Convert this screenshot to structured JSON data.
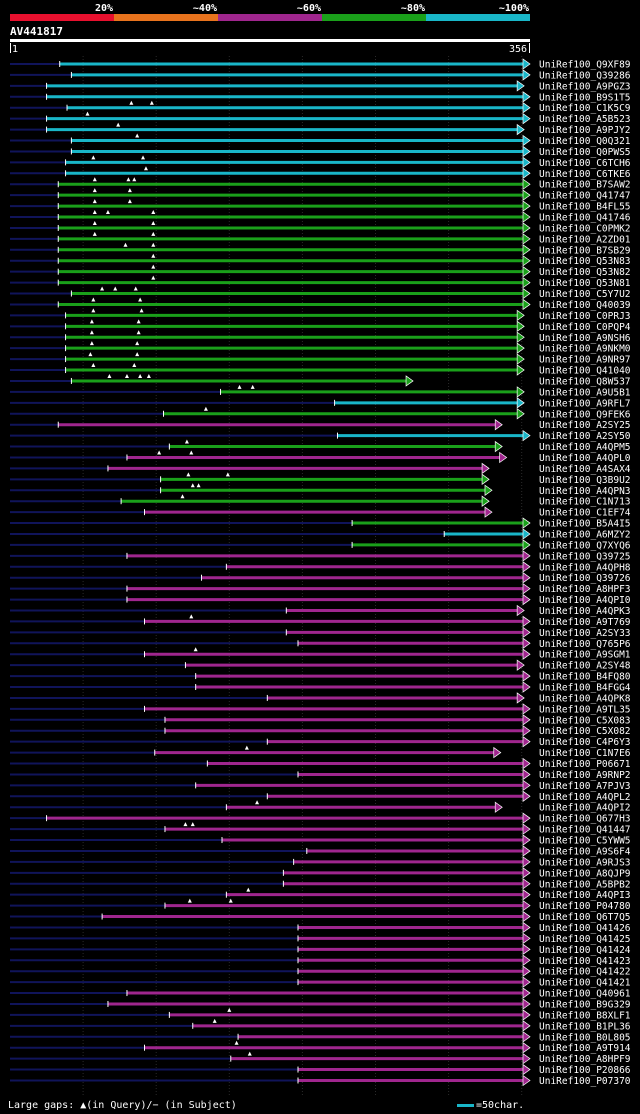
{
  "chart_data": {
    "type": "alignment-overview",
    "title": "AV441817",
    "query_length": 356,
    "axis": {
      "start_label": "1",
      "end_label": "356",
      "xlim": [
        1,
        356
      ]
    },
    "legend": {
      "identity": [
        {
          "label": "20%",
          "color": "#e8102e"
        },
        {
          "label": "~40%",
          "color": "#e8731d"
        },
        {
          "label": "~60%",
          "color": "#a0268e"
        },
        {
          "label": "~80%",
          "color": "#1aa01a"
        },
        {
          "label": "~100%",
          "color": "#19b6c8"
        }
      ],
      "gap_note": "Large gaps: ▲(in Query)/− (in Subject)",
      "scale_note": "=50char.",
      "scale_chars": 50
    },
    "colors": {
      "pink": "#a0268e",
      "green": "#1aa01a",
      "cyan": "#19b6c8",
      "dark": "#10145a",
      "white": "#ffffff"
    },
    "hits": [
      {
        "id": "UniRef100_Q9XF89",
        "start": 35,
        "end": 356,
        "color": "cyan"
      },
      {
        "id": "UniRef100_Q39286",
        "start": 43,
        "end": 356,
        "color": "cyan"
      },
      {
        "id": "UniRef100_A9PGZ3",
        "start": 26,
        "end": 352,
        "color": "cyan"
      },
      {
        "id": "UniRef100_B9S1T5",
        "start": 26,
        "end": 356,
        "color": "cyan"
      },
      {
        "id": "UniRef100_C1K5C9",
        "start": 40,
        "end": 356,
        "color": "cyan",
        "tri": [
          84,
          98
        ]
      },
      {
        "id": "UniRef100_A5B523",
        "start": 26,
        "end": 356,
        "color": "cyan",
        "tri": [
          54
        ]
      },
      {
        "id": "UniRef100_A9PJY2",
        "start": 26,
        "end": 352,
        "color": "cyan",
        "tri": [
          75
        ]
      },
      {
        "id": "UniRef100_Q0Q321",
        "start": 43,
        "end": 356,
        "color": "cyan",
        "tri": [
          88
        ]
      },
      {
        "id": "UniRef100_Q0PWS5",
        "start": 43,
        "end": 356,
        "color": "cyan"
      },
      {
        "id": "UniRef100_C6TCH6",
        "start": 39,
        "end": 356,
        "color": "cyan",
        "tri": [
          58,
          92
        ]
      },
      {
        "id": "UniRef100_C6TKE6",
        "start": 39,
        "end": 356,
        "color": "cyan",
        "tri": [
          94
        ]
      },
      {
        "id": "UniRef100_B7SAW2",
        "start": 34,
        "end": 356,
        "color": "green",
        "tri": [
          59,
          82,
          86
        ]
      },
      {
        "id": "UniRef100_Q41747",
        "start": 34,
        "end": 356,
        "color": "green",
        "tri": [
          59,
          83
        ]
      },
      {
        "id": "UniRef100_B4FL55",
        "start": 34,
        "end": 356,
        "color": "green",
        "tri": [
          59,
          83
        ]
      },
      {
        "id": "UniRef100_Q41746",
        "start": 34,
        "end": 356,
        "color": "green",
        "tri": [
          59,
          68,
          99
        ]
      },
      {
        "id": "UniRef100_C0PMK2",
        "start": 34,
        "end": 356,
        "color": "green",
        "tri": [
          59,
          99
        ]
      },
      {
        "id": "UniRef100_A2ZD01",
        "start": 34,
        "end": 356,
        "color": "green",
        "tri": [
          59,
          99
        ]
      },
      {
        "id": "UniRef100_B7SB29",
        "start": 34,
        "end": 356,
        "color": "green",
        "tri": [
          80,
          99
        ]
      },
      {
        "id": "UniRef100_Q53N83",
        "start": 34,
        "end": 356,
        "color": "green",
        "tri": [
          99
        ]
      },
      {
        "id": "UniRef100_Q53N82",
        "start": 34,
        "end": 356,
        "color": "green",
        "tri": [
          99
        ]
      },
      {
        "id": "UniRef100_Q53N81",
        "start": 34,
        "end": 356,
        "color": "green",
        "tri": [
          99
        ]
      },
      {
        "id": "UniRef100_C5Y7U2",
        "start": 43,
        "end": 356,
        "color": "green",
        "tri": [
          64,
          73,
          87
        ]
      },
      {
        "id": "UniRef100_Q40039",
        "start": 34,
        "end": 356,
        "color": "green",
        "tri": [
          58,
          90
        ]
      },
      {
        "id": "UniRef100_C0PRJ3",
        "start": 39,
        "end": 352,
        "color": "green",
        "tri": [
          58,
          91
        ]
      },
      {
        "id": "UniRef100_C0PQP4",
        "start": 39,
        "end": 352,
        "color": "green",
        "tri": [
          57,
          89
        ]
      },
      {
        "id": "UniRef100_A9NSH6",
        "start": 39,
        "end": 352,
        "color": "green",
        "tri": [
          57,
          89
        ]
      },
      {
        "id": "UniRef100_A9NKM0",
        "start": 39,
        "end": 352,
        "color": "green",
        "tri": [
          57,
          88
        ]
      },
      {
        "id": "UniRef100_A9NR97",
        "start": 39,
        "end": 352,
        "color": "green",
        "tri": [
          56,
          88
        ]
      },
      {
        "id": "UniRef100_Q41040",
        "start": 39,
        "end": 352,
        "color": "green",
        "tri": [
          58,
          86
        ]
      },
      {
        "id": "UniRef100_Q8W537",
        "start": 43,
        "end": 276,
        "color": "green",
        "tri": [
          69,
          81,
          90,
          96
        ]
      },
      {
        "id": "UniRef100_A9U5B1",
        "start": 145,
        "end": 352,
        "color": "green",
        "tri": [
          158,
          167
        ]
      },
      {
        "id": "UniRef100_A9RFL7",
        "start": 223,
        "end": 352,
        "color": "cyan"
      },
      {
        "id": "UniRef100_Q9FEK6",
        "start": 106,
        "end": 352,
        "color": "green",
        "tri": [
          135
        ]
      },
      {
        "id": "UniRef100_A2SY25",
        "start": 34,
        "end": 337,
        "color": "pink"
      },
      {
        "id": "UniRef100_A2SY50",
        "start": 225,
        "end": 356,
        "color": "cyan"
      },
      {
        "id": "UniRef100_A4QPM5",
        "start": 110,
        "end": 337,
        "color": "green",
        "tri": [
          122
        ]
      },
      {
        "id": "UniRef100_A4QPL0",
        "start": 81,
        "end": 340,
        "color": "pink",
        "tri": [
          103,
          125
        ]
      },
      {
        "id": "UniRef100_A4SAX4",
        "start": 68,
        "end": 328,
        "color": "pink"
      },
      {
        "id": "UniRef100_Q3B9U2",
        "start": 104,
        "end": 328,
        "color": "green",
        "tri": [
          123,
          150
        ]
      },
      {
        "id": "UniRef100_A4QPN3",
        "start": 104,
        "end": 330,
        "color": "green",
        "tri": [
          126,
          130
        ]
      },
      {
        "id": "UniRef100_C1N713",
        "start": 77,
        "end": 328,
        "color": "green",
        "tri": [
          119
        ]
      },
      {
        "id": "UniRef100_C1EF74",
        "start": 93,
        "end": 330,
        "color": "pink"
      },
      {
        "id": "UniRef100_B5A4I5",
        "start": 235,
        "end": 356,
        "color": "green"
      },
      {
        "id": "UniRef100_A6MZY2",
        "start": 298,
        "end": 356,
        "color": "cyan"
      },
      {
        "id": "UniRef100_Q7XYQ6",
        "start": 235,
        "end": 356,
        "color": "green"
      },
      {
        "id": "UniRef100_Q39725",
        "start": 81,
        "end": 356,
        "color": "pink"
      },
      {
        "id": "UniRef100_A4QPH8",
        "start": 149,
        "end": 356,
        "color": "pink"
      },
      {
        "id": "UniRef100_Q39726",
        "start": 132,
        "end": 356,
        "color": "pink"
      },
      {
        "id": "UniRef100_A8HPF3",
        "start": 81,
        "end": 356,
        "color": "pink"
      },
      {
        "id": "UniRef100_A4QPI0",
        "start": 81,
        "end": 356,
        "color": "pink"
      },
      {
        "id": "UniRef100_A4QPK3",
        "start": 190,
        "end": 352,
        "color": "pink"
      },
      {
        "id": "UniRef100_A9T769",
        "start": 93,
        "end": 356,
        "color": "pink",
        "tri": [
          125
        ]
      },
      {
        "id": "UniRef100_A2SY33",
        "start": 190,
        "end": 356,
        "color": "pink"
      },
      {
        "id": "UniRef100_Q765P6",
        "start": 198,
        "end": 356,
        "color": "pink"
      },
      {
        "id": "UniRef100_A9SGM1",
        "start": 93,
        "end": 356,
        "color": "pink",
        "tri": [
          128
        ]
      },
      {
        "id": "UniRef100_A2SY48",
        "start": 121,
        "end": 352,
        "color": "pink"
      },
      {
        "id": "UniRef100_B4FQ80",
        "start": 128,
        "end": 356,
        "color": "pink"
      },
      {
        "id": "UniRef100_B4FGG4",
        "start": 128,
        "end": 356,
        "color": "pink"
      },
      {
        "id": "UniRef100_A4QPK8",
        "start": 177,
        "end": 352,
        "color": "pink"
      },
      {
        "id": "UniRef100_A9TL35",
        "start": 93,
        "end": 356,
        "color": "pink"
      },
      {
        "id": "UniRef100_C5X083",
        "start": 107,
        "end": 356,
        "color": "pink"
      },
      {
        "id": "UniRef100_C5X082",
        "start": 107,
        "end": 356,
        "color": "pink"
      },
      {
        "id": "UniRef100_C4P6Y3",
        "start": 177,
        "end": 356,
        "color": "pink"
      },
      {
        "id": "UniRef100_C1N7E6",
        "start": 100,
        "end": 336,
        "color": "pink",
        "tri": [
          163
        ]
      },
      {
        "id": "UniRef100_P06671",
        "start": 136,
        "end": 356,
        "color": "pink"
      },
      {
        "id": "UniRef100_A9RNP2",
        "start": 198,
        "end": 356,
        "color": "pink"
      },
      {
        "id": "UniRef100_A7PJV3",
        "start": 128,
        "end": 356,
        "color": "pink"
      },
      {
        "id": "UniRef100_A4QPL2",
        "start": 177,
        "end": 356,
        "color": "pink"
      },
      {
        "id": "UniRef100_A4QPI2",
        "start": 149,
        "end": 337,
        "color": "pink",
        "tri": [
          170
        ]
      },
      {
        "id": "UniRef100_Q677H3",
        "start": 26,
        "end": 356,
        "color": "pink"
      },
      {
        "id": "UniRef100_Q41447",
        "start": 107,
        "end": 356,
        "color": "pink",
        "tri": [
          121,
          126
        ]
      },
      {
        "id": "UniRef100_C5YWW5",
        "start": 146,
        "end": 356,
        "color": "pink"
      },
      {
        "id": "UniRef100_A9S6F4",
        "start": 204,
        "end": 356,
        "color": "pink"
      },
      {
        "id": "UniRef100_A9RJS3",
        "start": 195,
        "end": 356,
        "color": "pink"
      },
      {
        "id": "UniRef100_A8QJP9",
        "start": 188,
        "end": 356,
        "color": "pink"
      },
      {
        "id": "UniRef100_A5BPB2",
        "start": 188,
        "end": 356,
        "color": "pink"
      },
      {
        "id": "UniRef100_A4QPI3",
        "start": 149,
        "end": 356,
        "color": "pink",
        "tri": [
          164
        ]
      },
      {
        "id": "UniRef100_P04780",
        "start": 107,
        "end": 356,
        "color": "pink",
        "tri": [
          124,
          152
        ]
      },
      {
        "id": "UniRef100_Q6T7Q5",
        "start": 64,
        "end": 356,
        "color": "pink"
      },
      {
        "id": "UniRef100_Q41426",
        "start": 198,
        "end": 356,
        "color": "pink"
      },
      {
        "id": "UniRef100_Q41425",
        "start": 198,
        "end": 356,
        "color": "pink"
      },
      {
        "id": "UniRef100_Q41424",
        "start": 198,
        "end": 356,
        "color": "pink"
      },
      {
        "id": "UniRef100_Q41423",
        "start": 198,
        "end": 356,
        "color": "pink"
      },
      {
        "id": "UniRef100_Q41422",
        "start": 198,
        "end": 356,
        "color": "pink"
      },
      {
        "id": "UniRef100_Q41421",
        "start": 198,
        "end": 356,
        "color": "pink"
      },
      {
        "id": "UniRef100_Q40961",
        "start": 81,
        "end": 356,
        "color": "pink"
      },
      {
        "id": "UniRef100_B9G329",
        "start": 68,
        "end": 356,
        "color": "pink"
      },
      {
        "id": "UniRef100_B8XLF1",
        "start": 110,
        "end": 356,
        "color": "pink",
        "tri": [
          151
        ]
      },
      {
        "id": "UniRef100_B1PL36",
        "start": 126,
        "end": 356,
        "color": "pink",
        "tri": [
          141
        ]
      },
      {
        "id": "UniRef100_B0L805",
        "start": 157,
        "end": 356,
        "color": "pink"
      },
      {
        "id": "UniRef100_A9T914",
        "start": 93,
        "end": 356,
        "color": "pink",
        "tri": [
          156
        ]
      },
      {
        "id": "UniRef100_A8HPF9",
        "start": 152,
        "end": 356,
        "color": "pink",
        "tri": [
          165
        ]
      },
      {
        "id": "UniRef100_P20866",
        "start": 198,
        "end": 356,
        "color": "pink"
      },
      {
        "id": "UniRef100_P07370",
        "start": 198,
        "end": 356,
        "color": "pink"
      }
    ]
  }
}
